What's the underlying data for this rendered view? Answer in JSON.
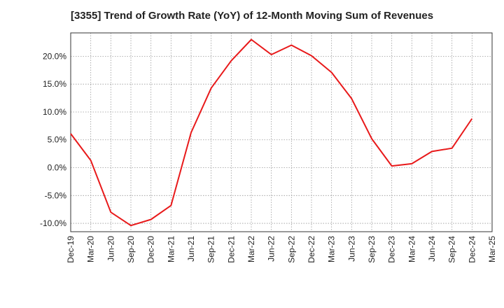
{
  "chart_data": {
    "type": "line",
    "title": "[3355]  Trend of Growth Rate (YoY) of 12-Month Moving Sum of Revenues",
    "xlabel": "",
    "ylabel": "",
    "categories": [
      "Dec-19",
      "Mar-20",
      "Jun-20",
      "Sep-20",
      "Dec-20",
      "Mar-21",
      "Jun-21",
      "Sep-21",
      "Dec-21",
      "Mar-22",
      "Jun-22",
      "Sep-22",
      "Dec-22",
      "Mar-23",
      "Jun-23",
      "Sep-23",
      "Dec-23",
      "Mar-24",
      "Jun-24",
      "Sep-24",
      "Dec-24",
      "Mar-25"
    ],
    "x_tick_labels": [
      "Dec-19",
      "Mar-20",
      "Jun-20",
      "Sep-20",
      "Dec-20",
      "Mar-21",
      "Jun-21",
      "Sep-21",
      "Dec-21",
      "Mar-22",
      "Jun-22",
      "Sep-22",
      "Dec-22",
      "Mar-23",
      "Jun-23",
      "Sep-23",
      "Dec-23",
      "Mar-24",
      "Jun-24",
      "Sep-24",
      "Dec-24",
      "Mar-25"
    ],
    "y_ticks": [
      -10,
      -5,
      0,
      5,
      10,
      15,
      20
    ],
    "y_tick_labels": [
      "-10.0%",
      "-5.0%",
      "0.0%",
      "5.0%",
      "10.0%",
      "15.0%",
      "20.0%"
    ],
    "ylim": [
      -11.5,
      24.2
    ],
    "grid": true,
    "series": [
      {
        "color": "#e8191a",
        "values": [
          6.1,
          1.3,
          -8.0,
          -10.4,
          -9.3,
          -6.8,
          6.3,
          14.3,
          19.2,
          23.0,
          20.3,
          22.0,
          20.1,
          17.1,
          12.4,
          5.2,
          0.3,
          0.7,
          2.9,
          3.5,
          8.8,
          null
        ]
      }
    ]
  }
}
